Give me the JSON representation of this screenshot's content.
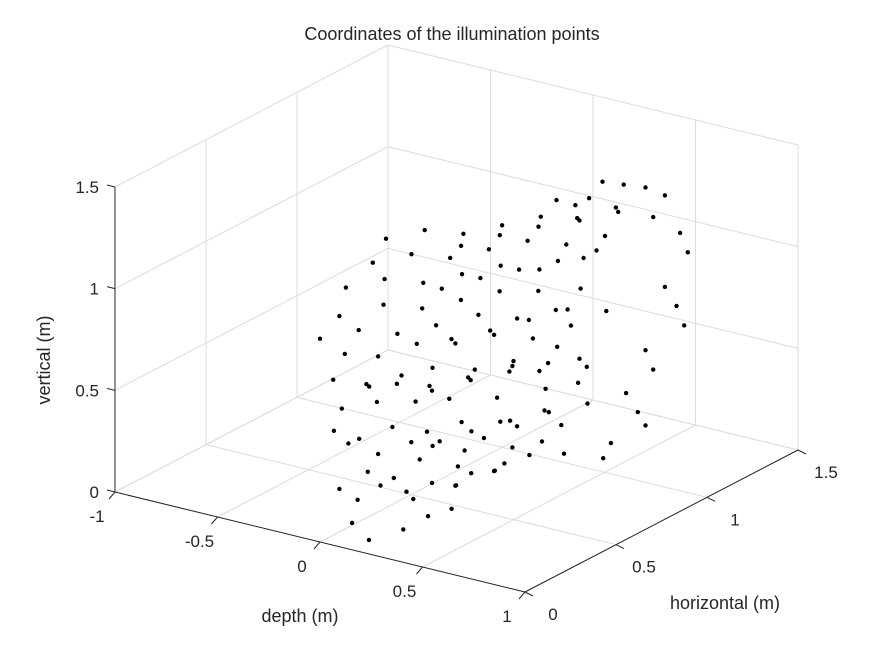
{
  "chart_data": {
    "type": "scatter3d",
    "title": "Coordinates of the illumination points",
    "xlabel": "depth (m)",
    "ylabel": "horizontal (m)",
    "zlabel": "vertical (m)",
    "xlim": [
      -1,
      1
    ],
    "ylim": [
      0,
      1.5
    ],
    "zlim": [
      0,
      1.5
    ],
    "x_ticks": [
      "-1",
      "-0.5",
      "0",
      "0.5",
      "1"
    ],
    "y_ticks": [
      "0",
      "0.5",
      "1",
      "1.5"
    ],
    "z_ticks": [
      "0",
      "0.5",
      "1",
      "1.5"
    ],
    "grid": true,
    "marker_color": "#000000",
    "points": [
      [
        0.05,
        0.12,
        0.05
      ],
      [
        0.15,
        0.1,
        0.0
      ],
      [
        0.3,
        0.12,
        0.08
      ],
      [
        0.35,
        0.2,
        0.12
      ],
      [
        0.42,
        0.25,
        0.15
      ],
      [
        0.35,
        0.35,
        0.2
      ],
      [
        0.45,
        0.45,
        0.25
      ],
      [
        0.05,
        0.15,
        0.15
      ],
      [
        0.1,
        0.22,
        0.2
      ],
      [
        0.2,
        0.25,
        0.18
      ],
      [
        0.28,
        0.3,
        0.22
      ],
      [
        0.4,
        0.38,
        0.26
      ],
      [
        0.5,
        0.45,
        0.3
      ],
      [
        0.3,
        0.42,
        0.25
      ],
      [
        0.05,
        0.05,
        0.25
      ],
      [
        0.1,
        0.15,
        0.3
      ],
      [
        0.2,
        0.18,
        0.28
      ],
      [
        0.22,
        0.3,
        0.32
      ],
      [
        0.35,
        0.4,
        0.35
      ],
      [
        0.45,
        0.55,
        0.32
      ],
      [
        0.55,
        0.6,
        0.35
      ],
      [
        0.05,
        0.1,
        0.45
      ],
      [
        0.15,
        0.15,
        0.4
      ],
      [
        0.25,
        0.22,
        0.45
      ],
      [
        0.3,
        0.32,
        0.42
      ],
      [
        0.4,
        0.45,
        0.4
      ],
      [
        0.5,
        0.52,
        0.45
      ],
      [
        0.6,
        0.65,
        0.42
      ],
      [
        0.05,
        0.02,
        0.55
      ],
      [
        0.12,
        0.08,
        0.5
      ],
      [
        0.22,
        0.15,
        0.55
      ],
      [
        0.3,
        0.25,
        0.5
      ],
      [
        0.38,
        0.35,
        0.52
      ],
      [
        0.48,
        0.45,
        0.5
      ],
      [
        0.58,
        0.58,
        0.52
      ],
      [
        0.0,
        0.12,
        0.6
      ],
      [
        0.1,
        0.2,
        0.62
      ],
      [
        0.2,
        0.3,
        0.6
      ],
      [
        0.32,
        0.35,
        0.62
      ],
      [
        0.42,
        0.5,
        0.58
      ],
      [
        0.55,
        0.62,
        0.6
      ],
      [
        0.62,
        0.72,
        0.6
      ],
      [
        0.08,
        0.18,
        0.7
      ],
      [
        0.18,
        0.22,
        0.72
      ],
      [
        0.25,
        0.32,
        0.68
      ],
      [
        0.35,
        0.42,
        0.7
      ],
      [
        0.45,
        0.55,
        0.72
      ],
      [
        0.52,
        0.62,
        0.68
      ],
      [
        0.6,
        0.75,
        0.7
      ],
      [
        0.02,
        0.05,
        0.78
      ],
      [
        0.12,
        0.12,
        0.75
      ],
      [
        0.22,
        0.2,
        0.78
      ],
      [
        0.3,
        0.28,
        0.8
      ],
      [
        0.4,
        0.4,
        0.76
      ],
      [
        0.5,
        0.5,
        0.78
      ],
      [
        0.58,
        0.65,
        0.8
      ],
      [
        0.05,
        0.08,
        0.9
      ],
      [
        0.15,
        0.15,
        0.88
      ],
      [
        0.25,
        0.25,
        0.92
      ],
      [
        0.35,
        0.35,
        0.9
      ],
      [
        0.45,
        0.45,
        0.92
      ],
      [
        0.55,
        0.55,
        0.88
      ],
      [
        0.62,
        0.68,
        0.9
      ],
      [
        0.0,
        0.0,
        1.0
      ],
      [
        0.1,
        0.1,
        1.02
      ],
      [
        0.2,
        0.2,
        0.98
      ],
      [
        0.3,
        0.3,
        1.0
      ],
      [
        0.4,
        0.42,
        1.02
      ],
      [
        0.5,
        0.52,
        0.98
      ],
      [
        0.6,
        0.62,
        1.0
      ],
      [
        0.05,
        0.05,
        1.1
      ],
      [
        0.15,
        0.18,
        1.12
      ],
      [
        0.25,
        0.28,
        1.08
      ],
      [
        0.35,
        0.38,
        1.1
      ],
      [
        0.45,
        0.48,
        1.12
      ],
      [
        0.55,
        0.58,
        1.1
      ],
      [
        0.65,
        0.7,
        1.08
      ],
      [
        0.02,
        0.12,
        1.2
      ],
      [
        0.12,
        0.22,
        1.22
      ],
      [
        0.22,
        0.32,
        1.18
      ],
      [
        0.32,
        0.42,
        1.2
      ],
      [
        0.42,
        0.52,
        1.22
      ],
      [
        0.52,
        0.62,
        1.18
      ],
      [
        0.62,
        0.75,
        1.2
      ],
      [
        0.08,
        0.2,
        1.3
      ],
      [
        0.18,
        0.3,
        1.32
      ],
      [
        0.28,
        0.4,
        1.28
      ],
      [
        0.38,
        0.5,
        1.3
      ],
      [
        0.48,
        0.6,
        1.32
      ],
      [
        0.58,
        0.7,
        1.28
      ],
      [
        0.68,
        0.8,
        1.3
      ],
      [
        0.1,
        0.25,
        1.4
      ],
      [
        0.2,
        0.35,
        1.42
      ],
      [
        0.3,
        0.45,
        1.38
      ],
      [
        0.4,
        0.55,
        1.4
      ],
      [
        0.5,
        0.65,
        1.42
      ],
      [
        0.6,
        0.75,
        1.38
      ],
      [
        0.7,
        0.85,
        1.4
      ],
      [
        0.55,
        0.68,
        1.5
      ],
      [
        0.62,
        0.78,
        1.48
      ],
      [
        0.7,
        0.88,
        1.52
      ],
      [
        0.65,
        0.82,
        1.55
      ],
      [
        0.58,
        0.75,
        1.45
      ],
      [
        0.1,
        0.4,
        0.05
      ],
      [
        0.22,
        0.5,
        0.1
      ],
      [
        0.32,
        0.6,
        0.15
      ],
      [
        0.4,
        0.7,
        0.2
      ],
      [
        0.48,
        0.8,
        0.18
      ],
      [
        0.15,
        0.45,
        0.3
      ],
      [
        0.25,
        0.55,
        0.35
      ],
      [
        0.35,
        0.65,
        0.38
      ],
      [
        0.45,
        0.75,
        0.4
      ],
      [
        0.55,
        0.85,
        0.42
      ],
      [
        0.12,
        0.48,
        0.55
      ],
      [
        0.22,
        0.58,
        0.58
      ],
      [
        0.32,
        0.68,
        0.6
      ],
      [
        0.42,
        0.78,
        0.62
      ],
      [
        0.52,
        0.88,
        0.58
      ],
      [
        0.18,
        0.52,
        0.8
      ],
      [
        0.28,
        0.62,
        0.82
      ],
      [
        0.38,
        0.72,
        0.85
      ],
      [
        0.48,
        0.82,
        0.88
      ],
      [
        0.58,
        0.92,
        0.85
      ],
      [
        0.15,
        0.5,
        1.05
      ],
      [
        0.25,
        0.6,
        1.08
      ],
      [
        0.35,
        0.7,
        1.1
      ],
      [
        0.45,
        0.8,
        1.12
      ],
      [
        0.55,
        0.9,
        1.15
      ],
      [
        0.2,
        0.55,
        1.25
      ],
      [
        0.3,
        0.65,
        1.28
      ],
      [
        0.4,
        0.75,
        1.3
      ],
      [
        0.5,
        0.85,
        1.32
      ],
      [
        0.6,
        0.95,
        1.35
      ],
      [
        0.7,
        1.0,
        1.45
      ],
      [
        0.75,
        1.05,
        1.4
      ],
      [
        0.72,
        1.02,
        1.3
      ],
      [
        0.78,
        1.1,
        1.2
      ],
      [
        0.8,
        1.12,
        1.1
      ],
      [
        0.75,
        1.05,
        0.95
      ],
      [
        0.78,
        1.08,
        0.85
      ],
      [
        0.8,
        1.1,
        0.75
      ],
      [
        0.7,
        1.0,
        0.65
      ],
      [
        0.72,
        1.02,
        0.55
      ],
      [
        0.65,
        0.95,
        0.45
      ],
      [
        0.68,
        0.98,
        0.35
      ],
      [
        0.7,
        1.0,
        0.28
      ],
      [
        0.62,
        0.9,
        0.22
      ],
      [
        0.6,
        0.88,
        0.15
      ]
    ]
  }
}
